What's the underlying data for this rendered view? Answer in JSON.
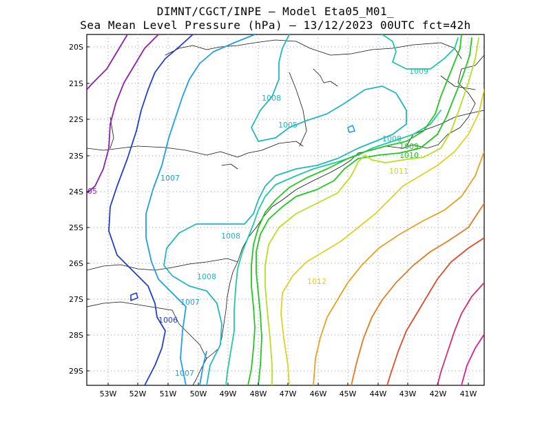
{
  "title_line1": "DIMNT/CGCT/INPE –  Model Eta05_M01_",
  "title_line2": "Sea Mean Level Pressure (hPa) – 13/12/2023 00UTC fct=42h",
  "y_ticks": [
    "20S",
    "21S",
    "22S",
    "23S",
    "24S",
    "25S",
    "26S",
    "27S",
    "28S",
    "29S"
  ],
  "x_ticks": [
    "53W",
    "52W",
    "51W",
    "50W",
    "49W",
    "48W",
    "47W",
    "46W",
    "45W",
    "44W",
    "43W",
    "42W",
    "41W"
  ],
  "contour_labels": [
    {
      "text": "1009",
      "color": "#1fc8a0"
    },
    {
      "text": "1008",
      "color": "#1fb8c0"
    },
    {
      "text": "1005",
      "color": "#1fb8c0"
    },
    {
      "text": "1008",
      "color": "#1fb8c0"
    },
    {
      "text": "1009",
      "color": "#1ec81e"
    },
    {
      "text": "1010",
      "color": "#1ec81e"
    },
    {
      "text": "1011",
      "color": "#c8d81e"
    },
    {
      "text": "1007",
      "color": "#1e9ee8"
    },
    {
      "text": "05",
      "color": "#8c1eb4"
    },
    {
      "text": "1008",
      "color": "#1fb8c0"
    },
    {
      "text": "1008",
      "color": "#1fb8c0"
    },
    {
      "text": "1012",
      "color": "#e0d01e"
    },
    {
      "text": "1007",
      "color": "#1e9ee8"
    },
    {
      "text": "1006",
      "color": "#1e3cd8"
    },
    {
      "text": "1007",
      "color": "#1e9ee8"
    }
  ]
}
